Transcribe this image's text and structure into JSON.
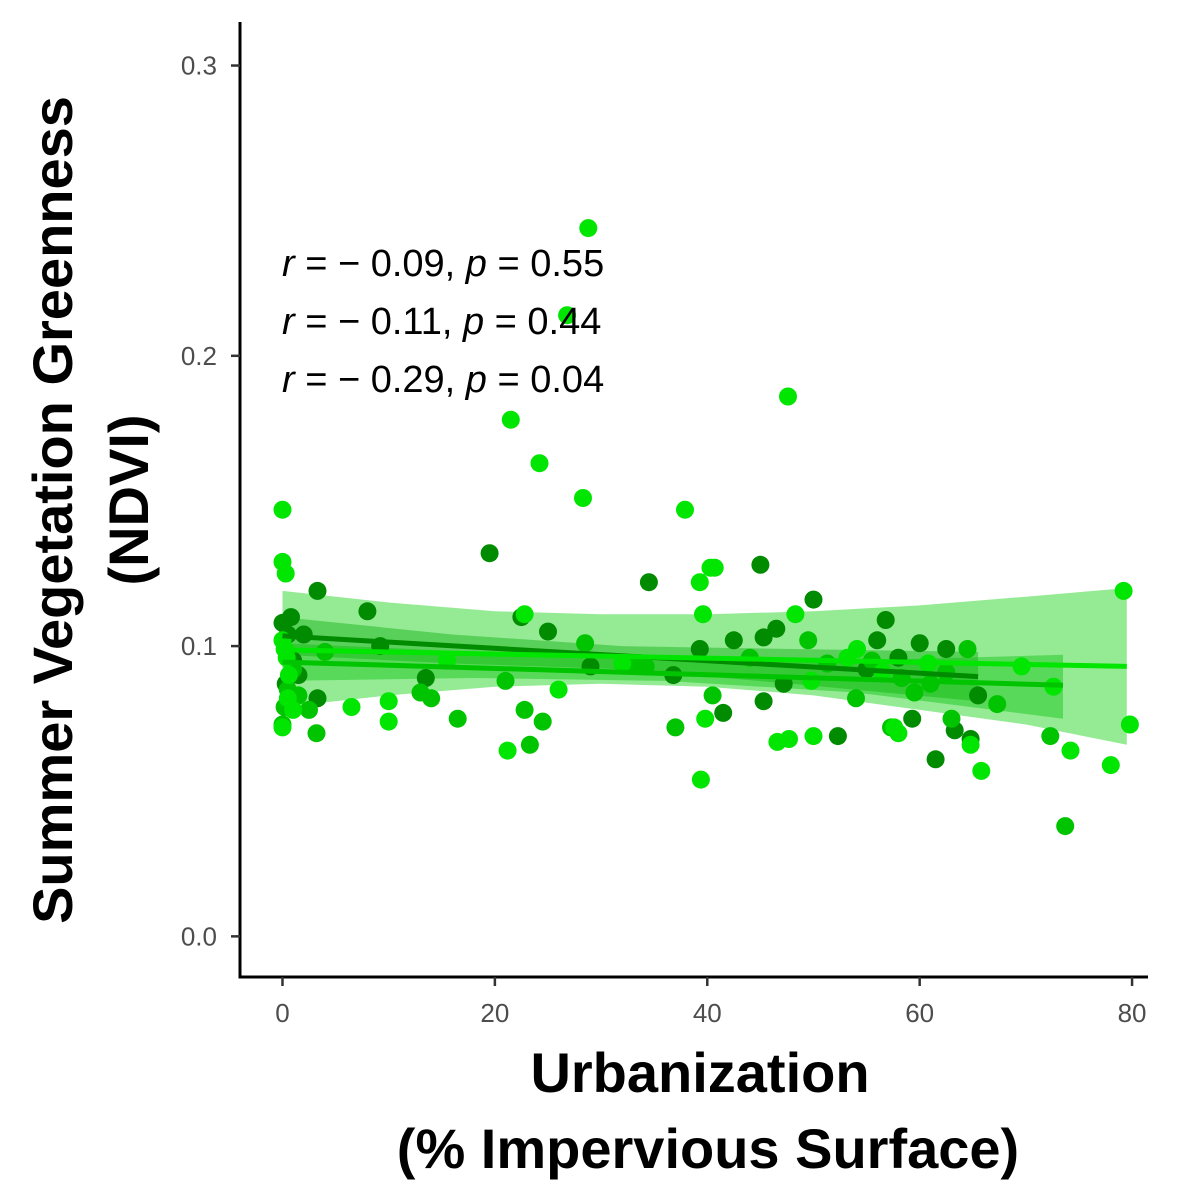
{
  "chart_data": {
    "type": "scatter",
    "xlabel_lines": [
      "Urbanization",
      "(% Impervious Surface)"
    ],
    "ylabel_lines": [
      "Summer Vegetation Greenness",
      "(NDVI)"
    ],
    "xlim": [
      -4,
      81.5
    ],
    "ylim": [
      -0.014,
      0.315
    ],
    "xticks": [
      0,
      20,
      40,
      60,
      80
    ],
    "xtick_labels": [
      "0",
      "20",
      "40",
      "60",
      "80"
    ],
    "yticks": [
      0.0,
      0.1,
      0.2,
      0.3
    ],
    "ytick_labels": [
      "0.0",
      "0.1",
      "0.2",
      "0.3"
    ],
    "grid": false,
    "annotations": [
      {
        "r_label": "r",
        "r_text": " = − 0.09, ",
        "p_label": "p",
        "p_text": " = 0.55"
      },
      {
        "r_label": "r",
        "r_text": " = − 0.11, ",
        "p_label": "p",
        "p_text": " = 0.44"
      },
      {
        "r_label": "r",
        "r_text": " = − 0.29, ",
        "p_label": "p",
        "p_text": " = 0.04"
      }
    ],
    "series": [
      {
        "color": "#008B00",
        "band_color": "#008B00",
        "fit": {
          "x": [
            0,
            65.5
          ],
          "y": [
            0.1035,
            0.0895
          ]
        },
        "band": {
          "x": [
            0,
            16,
            32,
            48,
            65.5
          ],
          "upper": [
            0.11,
            0.104,
            0.1,
            0.099,
            0.098
          ],
          "lower": [
            0.097,
            0.094,
            0.092,
            0.087,
            0.081
          ]
        },
        "points": [
          [
            0,
            0.108
          ],
          [
            0.5,
            0.104
          ],
          [
            1,
            0.095
          ],
          [
            1.5,
            0.09
          ],
          [
            0.3,
            0.087
          ],
          [
            0.8,
            0.11
          ],
          [
            2,
            0.104
          ],
          [
            3.3,
            0.119
          ],
          [
            8,
            0.112
          ],
          [
            9.2,
            0.1
          ],
          [
            3.3,
            0.082
          ],
          [
            13.5,
            0.089
          ],
          [
            19.5,
            0.132
          ],
          [
            22.5,
            0.11
          ],
          [
            25,
            0.105
          ],
          [
            29,
            0.093
          ],
          [
            34.5,
            0.122
          ],
          [
            36.8,
            0.09
          ],
          [
            39.3,
            0.099
          ],
          [
            41.5,
            0.077
          ],
          [
            42.5,
            0.102
          ],
          [
            45,
            0.128
          ],
          [
            45.3,
            0.103
          ],
          [
            45.3,
            0.081
          ],
          [
            46.5,
            0.106
          ],
          [
            47.2,
            0.087
          ],
          [
            50,
            0.116
          ],
          [
            52.3,
            0.069
          ],
          [
            55,
            0.092
          ],
          [
            56,
            0.102
          ],
          [
            56.8,
            0.109
          ],
          [
            58,
            0.096
          ],
          [
            59.3,
            0.075
          ],
          [
            60,
            0.101
          ],
          [
            61.5,
            0.061
          ],
          [
            62.5,
            0.099
          ],
          [
            63.3,
            0.071
          ],
          [
            64.8,
            0.068
          ],
          [
            65.5,
            0.083
          ]
        ]
      },
      {
        "color": "#00C400",
        "band_color": "#00B400",
        "fit": {
          "x": [
            0,
            73.5
          ],
          "y": [
            0.0945,
            0.0865
          ]
        },
        "band": {
          "x": [
            0,
            18,
            36,
            54,
            73.5
          ],
          "upper": [
            0.101,
            0.098,
            0.095,
            0.095,
            0.097
          ],
          "lower": [
            0.088,
            0.089,
            0.088,
            0.084,
            0.075
          ]
        },
        "points": [
          [
            0,
            0.073
          ],
          [
            0.2,
            0.079
          ],
          [
            0.5,
            0.085
          ],
          [
            1,
            0.092
          ],
          [
            1.5,
            0.083
          ],
          [
            2.5,
            0.078
          ],
          [
            3.2,
            0.07
          ],
          [
            4,
            0.098
          ],
          [
            13,
            0.084
          ],
          [
            14,
            0.082
          ],
          [
            16.5,
            0.075
          ],
          [
            21,
            0.088
          ],
          [
            22.8,
            0.078
          ],
          [
            23.3,
            0.066
          ],
          [
            24.5,
            0.074
          ],
          [
            28.5,
            0.101
          ],
          [
            33,
            0.094
          ],
          [
            34.2,
            0.093
          ],
          [
            37,
            0.072
          ],
          [
            40.5,
            0.083
          ],
          [
            44,
            0.096
          ],
          [
            49.5,
            0.102
          ],
          [
            51.3,
            0.094
          ],
          [
            54,
            0.082
          ],
          [
            55.5,
            0.095
          ],
          [
            57.3,
            0.072
          ],
          [
            58.3,
            0.089
          ],
          [
            59.5,
            0.084
          ],
          [
            61,
            0.087
          ],
          [
            62.5,
            0.091
          ],
          [
            63,
            0.075
          ],
          [
            64.5,
            0.099
          ],
          [
            67.3,
            0.08
          ],
          [
            72.3,
            0.069
          ],
          [
            73.7,
            0.038
          ]
        ]
      },
      {
        "color": "#00E600",
        "band_color": "#00D000",
        "band_opacity": 0.42,
        "fit": {
          "x": [
            0,
            79.5
          ],
          "y": [
            0.0987,
            0.093
          ]
        },
        "band": {
          "x": [
            0,
            10,
            20,
            30,
            40,
            50,
            60,
            70,
            79.5
          ],
          "upper": [
            0.119,
            0.115,
            0.112,
            0.111,
            0.111,
            0.112,
            0.114,
            0.117,
            0.12
          ],
          "lower": [
            0.079,
            0.083,
            0.086,
            0.087,
            0.086,
            0.083,
            0.078,
            0.073,
            0.066
          ]
        },
        "points": [
          [
            0,
            0.147
          ],
          [
            0,
            0.129
          ],
          [
            0.3,
            0.125
          ],
          [
            0,
            0.102
          ],
          [
            0.2,
            0.099
          ],
          [
            0.4,
            0.096
          ],
          [
            0.6,
            0.09
          ],
          [
            0,
            0.072
          ],
          [
            0.5,
            0.082
          ],
          [
            1,
            0.078
          ],
          [
            6.5,
            0.079
          ],
          [
            10,
            0.081
          ],
          [
            10,
            0.074
          ],
          [
            15.5,
            0.095
          ],
          [
            21.5,
            0.178
          ],
          [
            24.2,
            0.163
          ],
          [
            26.8,
            0.214
          ],
          [
            28.8,
            0.244
          ],
          [
            28.3,
            0.151
          ],
          [
            26,
            0.085
          ],
          [
            22.8,
            0.111
          ],
          [
            21.2,
            0.064
          ],
          [
            37.9,
            0.147
          ],
          [
            39.3,
            0.122
          ],
          [
            39.6,
            0.111
          ],
          [
            40.3,
            0.127
          ],
          [
            40.7,
            0.127
          ],
          [
            39.4,
            0.054
          ],
          [
            39.8,
            0.075
          ],
          [
            47.6,
            0.186
          ],
          [
            48.3,
            0.111
          ],
          [
            49.8,
            0.088
          ],
          [
            50,
            0.069
          ],
          [
            47.7,
            0.068
          ],
          [
            46.6,
            0.067
          ],
          [
            53.2,
            0.096
          ],
          [
            54.1,
            0.099
          ],
          [
            57.6,
            0.072
          ],
          [
            58,
            0.07
          ],
          [
            64.8,
            0.066
          ],
          [
            65.8,
            0.057
          ],
          [
            69.6,
            0.093
          ],
          [
            72.6,
            0.086
          ],
          [
            74.2,
            0.064
          ],
          [
            78,
            0.059
          ],
          [
            79.2,
            0.119
          ],
          [
            79.8,
            0.073
          ],
          [
            32,
            0.094
          ],
          [
            56.5,
            0.091
          ],
          [
            60.8,
            0.094
          ]
        ]
      }
    ]
  }
}
